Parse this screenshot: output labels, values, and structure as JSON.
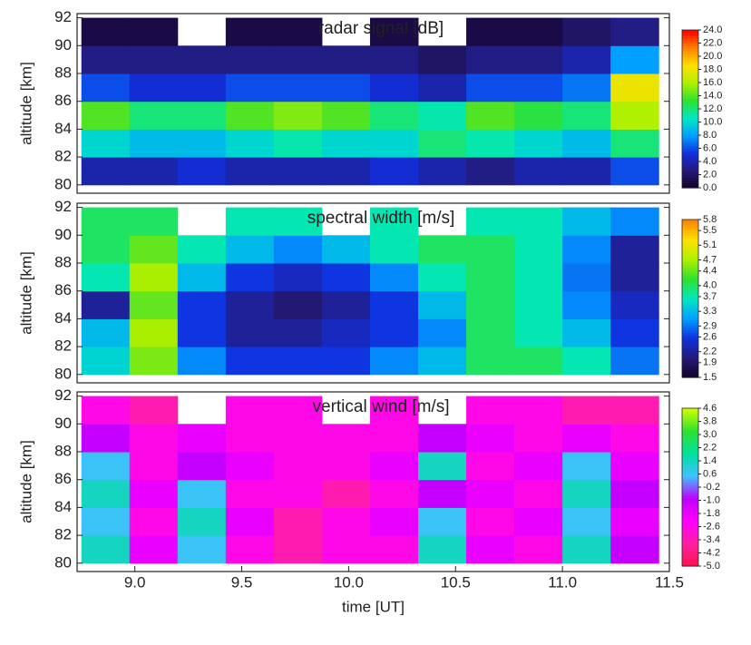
{
  "chart_data": [
    {
      "type": "heatmap",
      "title": "radar signal [dB]",
      "ylabel": "altitude [km]",
      "xlim": [
        8.73,
        11.5
      ],
      "ylim": [
        79.4,
        92.3
      ],
      "yticks": [
        80,
        82,
        84,
        86,
        88,
        90,
        92
      ],
      "xbins": [
        8.75,
        8.975,
        9.2,
        9.425,
        9.65,
        9.875,
        10.1,
        10.325,
        10.55,
        10.775,
        11.0,
        11.225,
        11.45
      ],
      "ybins": [
        80,
        82,
        84,
        86,
        88,
        90,
        92
      ],
      "z": [
        [
          4,
          4,
          5,
          4,
          4,
          4,
          5,
          4,
          3,
          4,
          4,
          6
        ],
        [
          10,
          9,
          9,
          10,
          11,
          10,
          10,
          12,
          11,
          10,
          9,
          12
        ],
        [
          14,
          12,
          12,
          14,
          15,
          14,
          12,
          11,
          14,
          13,
          12,
          16
        ],
        [
          6,
          5,
          5,
          6,
          6,
          6,
          5,
          4,
          6,
          6,
          7,
          18
        ],
        [
          3,
          3,
          3,
          3,
          3,
          3,
          3,
          2,
          3,
          3,
          4,
          8
        ],
        [
          1,
          1,
          null,
          1,
          1,
          null,
          1,
          null,
          1,
          1,
          2,
          3
        ]
      ],
      "zlim": [
        0,
        24
      ],
      "colorscale": [
        "#140028",
        "#241a78",
        "#1030e0",
        "#00a0ff",
        "#00e8c0",
        "#30e030",
        "#b0f000",
        "#ffe000",
        "#ff8000",
        "#ff0000"
      ],
      "cbticks": [
        {
          "value": 24,
          "label": "24.0"
        },
        {
          "value": 22,
          "label": "22.0"
        },
        {
          "value": 20,
          "label": "20.0"
        },
        {
          "value": 18,
          "label": "18.0"
        },
        {
          "value": 16,
          "label": "16.0"
        },
        {
          "value": 14,
          "label": "14.0"
        },
        {
          "value": 12,
          "label": "12.0"
        },
        {
          "value": 10,
          "label": "10.0"
        },
        {
          "value": 8,
          "label": "8.0"
        },
        {
          "value": 6,
          "label": "6.0"
        },
        {
          "value": 4,
          "label": "4.0"
        },
        {
          "value": 2,
          "label": "2.0"
        },
        {
          "value": 0,
          "label": "0.0"
        }
      ]
    },
    {
      "type": "heatmap",
      "title": "spectral width [m/s]",
      "ylabel": "altitude [km]",
      "xlim": [
        8.73,
        11.5
      ],
      "ylim": [
        79.4,
        92.3
      ],
      "yticks": [
        80,
        82,
        84,
        86,
        88,
        90,
        92
      ],
      "xbins": [
        8.75,
        8.975,
        9.2,
        9.425,
        9.65,
        9.875,
        10.1,
        10.325,
        10.55,
        10.775,
        11.0,
        11.225,
        11.45
      ],
      "ybins": [
        80,
        82,
        84,
        86,
        88,
        90,
        92
      ],
      "z": [
        [
          3.5,
          4.5,
          3.0,
          2.6,
          2.6,
          2.6,
          3.0,
          3.3,
          4.0,
          4.0,
          3.7,
          2.9
        ],
        [
          3.3,
          4.7,
          2.6,
          2.2,
          2.2,
          2.4,
          2.6,
          3.0,
          4.0,
          3.7,
          3.3,
          2.6
        ],
        [
          2.2,
          4.4,
          2.6,
          2.2,
          2.0,
          2.2,
          2.6,
          3.3,
          4.0,
          3.7,
          3.0,
          2.4
        ],
        [
          3.7,
          4.7,
          3.3,
          2.6,
          2.4,
          2.6,
          3.0,
          3.7,
          4.0,
          3.7,
          2.9,
          2.2
        ],
        [
          4.0,
          4.4,
          3.7,
          3.3,
          3.0,
          3.3,
          3.7,
          4.0,
          4.0,
          3.7,
          3.0,
          2.2
        ],
        [
          4.0,
          4.0,
          null,
          3.7,
          3.7,
          null,
          3.7,
          null,
          3.7,
          3.7,
          3.3,
          3.0
        ]
      ],
      "zlim": [
        1.5,
        5.8
      ],
      "colorscale": [
        "#140028",
        "#241a78",
        "#1030e0",
        "#00a0ff",
        "#00e8c0",
        "#30e030",
        "#b0f000",
        "#ffe000",
        "#ff8000"
      ],
      "cbticks": [
        5.8,
        5.5,
        5.1,
        4.7,
        4.4,
        {
          "value": 4,
          "label": "4.0"
        },
        3.7,
        3.3,
        2.9,
        2.6,
        2.2,
        1.9,
        1.5
      ]
    },
    {
      "type": "heatmap",
      "title": "vertical wind [m/s]",
      "ylabel": "altitude [km]",
      "xlabel": "time [UT]",
      "xlim": [
        8.73,
        11.5
      ],
      "ylim": [
        79.4,
        92.3
      ],
      "yticks": [
        80,
        82,
        84,
        86,
        88,
        90,
        92
      ],
      "xticks": [
        {
          "value": 9,
          "label": "9.0"
        },
        9.5,
        {
          "value": 10,
          "label": "10.0"
        },
        10.5,
        {
          "value": 11,
          "label": "11.0"
        },
        11.5
      ],
      "xbins": [
        8.75,
        8.975,
        9.2,
        9.425,
        9.65,
        9.875,
        10.1,
        10.325,
        10.55,
        10.775,
        11.0,
        11.225,
        11.45
      ],
      "ybins": [
        80,
        82,
        84,
        86,
        88,
        90,
        92
      ],
      "z": [
        [
          1.4,
          -1.8,
          0.6,
          -2.6,
          -3.4,
          -2.6,
          -2.6,
          1.4,
          -1.8,
          -2.6,
          1.4,
          -1.0
        ],
        [
          0.6,
          -2.6,
          1.4,
          -1.8,
          -3.4,
          -2.6,
          -1.8,
          0.6,
          -2.6,
          -1.8,
          0.6,
          -1.8
        ],
        [
          1.4,
          -1.8,
          0.6,
          -2.6,
          -2.6,
          -3.4,
          -2.6,
          -1.0,
          -1.8,
          -2.6,
          1.4,
          -1.0
        ],
        [
          0.6,
          -2.6,
          -1.0,
          -1.8,
          -2.6,
          -2.6,
          -1.8,
          1.4,
          -2.6,
          -1.8,
          0.6,
          -1.8
        ],
        [
          -1.0,
          -2.6,
          -1.8,
          -2.6,
          -2.6,
          -2.6,
          -2.6,
          -1.0,
          -1.8,
          -2.6,
          -1.8,
          -2.6
        ],
        [
          -2.6,
          -3.4,
          null,
          -2.6,
          -2.6,
          null,
          -2.6,
          null,
          -2.6,
          -2.6,
          -3.4,
          -3.4
        ]
      ],
      "zlim": [
        -5.0,
        4.6
      ],
      "colorscale": [
        "#ff1050",
        "#ff20a0",
        "#ff00ff",
        "#c000ff",
        "#40c0ff",
        "#00e0a0",
        "#30e030",
        "#d0ff00"
      ],
      "cbticks": [
        4.6,
        3.8,
        {
          "value": 3,
          "label": "3.0"
        },
        2.2,
        1.4,
        0.6,
        -0.2,
        {
          "value": -1,
          "label": "-1.0"
        },
        -1.8,
        -2.6,
        -3.4,
        -4.2,
        {
          "value": -5,
          "label": "-5.0"
        }
      ]
    }
  ]
}
